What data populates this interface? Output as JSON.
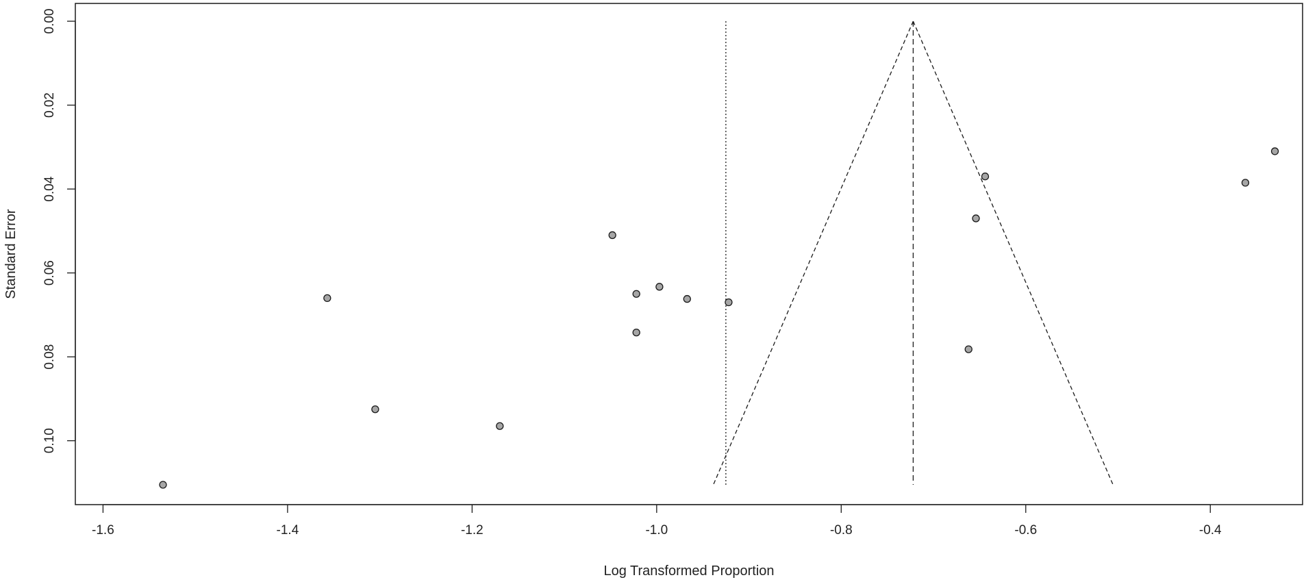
{
  "chart_data": {
    "type": "scatter",
    "title": "",
    "xlabel": "Log Transformed Proportion",
    "ylabel": "Standard Error",
    "xlim": [
      -1.63,
      -0.3
    ],
    "ylim": [
      0,
      0.115
    ],
    "y_inverted": true,
    "x_ticks": [
      {
        "value": -1.6,
        "label": "-1.6"
      },
      {
        "value": -1.4,
        "label": "-1.4"
      },
      {
        "value": -1.2,
        "label": "-1.2"
      },
      {
        "value": -1.0,
        "label": "-1.0"
      },
      {
        "value": -0.8,
        "label": "-0.8"
      },
      {
        "value": -0.6,
        "label": "-0.6"
      },
      {
        "value": -0.4,
        "label": "-0.4"
      }
    ],
    "y_ticks": [
      {
        "value": 0.0,
        "label": "0.00"
      },
      {
        "value": 0.02,
        "label": "0.02"
      },
      {
        "value": 0.04,
        "label": "0.04"
      },
      {
        "value": 0.06,
        "label": "0.06"
      },
      {
        "value": 0.08,
        "label": "0.08"
      },
      {
        "value": 0.1,
        "label": "0.10"
      }
    ],
    "points": [
      {
        "x": -1.535,
        "y": 0.1105
      },
      {
        "x": -1.357,
        "y": 0.066
      },
      {
        "x": -1.305,
        "y": 0.0925
      },
      {
        "x": -1.17,
        "y": 0.0965
      },
      {
        "x": -1.048,
        "y": 0.051
      },
      {
        "x": -1.022,
        "y": 0.065
      },
      {
        "x": -1.022,
        "y": 0.0742
      },
      {
        "x": -0.997,
        "y": 0.0633
      },
      {
        "x": -0.967,
        "y": 0.0662
      },
      {
        "x": -0.922,
        "y": 0.067
      },
      {
        "x": -0.662,
        "y": 0.0782
      },
      {
        "x": -0.654,
        "y": 0.047
      },
      {
        "x": -0.644,
        "y": 0.037
      },
      {
        "x": -0.362,
        "y": 0.0385
      },
      {
        "x": -0.33,
        "y": 0.031
      }
    ],
    "center_estimate": -0.722,
    "reference_line": -0.925,
    "funnel_max_se": 0.1105,
    "funnel_z": 1.96,
    "grid": false,
    "legend": "none",
    "colors": {
      "point_fill": "#a6a6a6",
      "point_stroke": "#1a1a1a",
      "lines": "#1a1a1a"
    }
  }
}
